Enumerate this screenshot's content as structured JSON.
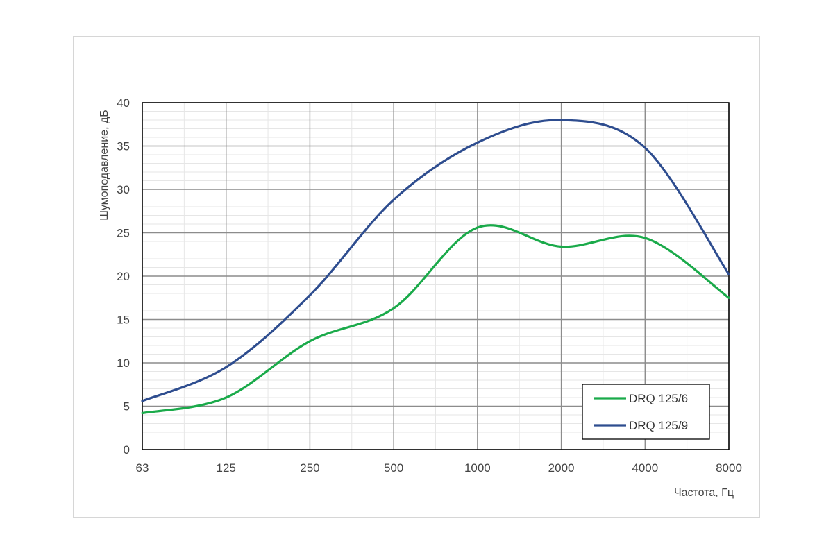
{
  "chart_data": {
    "type": "line",
    "x_scale": "log2",
    "x": [
      63,
      125,
      250,
      500,
      1000,
      2000,
      4000,
      8000
    ],
    "x_tick_labels": [
      "63",
      "125",
      "250",
      "500",
      "1000",
      "2000",
      "4000",
      "8000"
    ],
    "xlabel": "Частота, Гц",
    "ylabel": "Шумоподавление, дБ",
    "ylim": [
      0,
      40
    ],
    "y_ticks": [
      0,
      5,
      10,
      15,
      20,
      25,
      30,
      35,
      40
    ],
    "grid": true,
    "legend_position": "bottom-right",
    "series": [
      {
        "name": "DRQ 125/6",
        "color": "#1aaa4a",
        "values": [
          4.2,
          6.0,
          12.5,
          16.3,
          25.6,
          23.4,
          24.4,
          17.5
        ]
      },
      {
        "name": "DRQ 125/9",
        "color": "#2e4d8f",
        "values": [
          5.6,
          9.5,
          17.8,
          28.8,
          35.4,
          38.0,
          34.8,
          20.2
        ]
      }
    ]
  }
}
